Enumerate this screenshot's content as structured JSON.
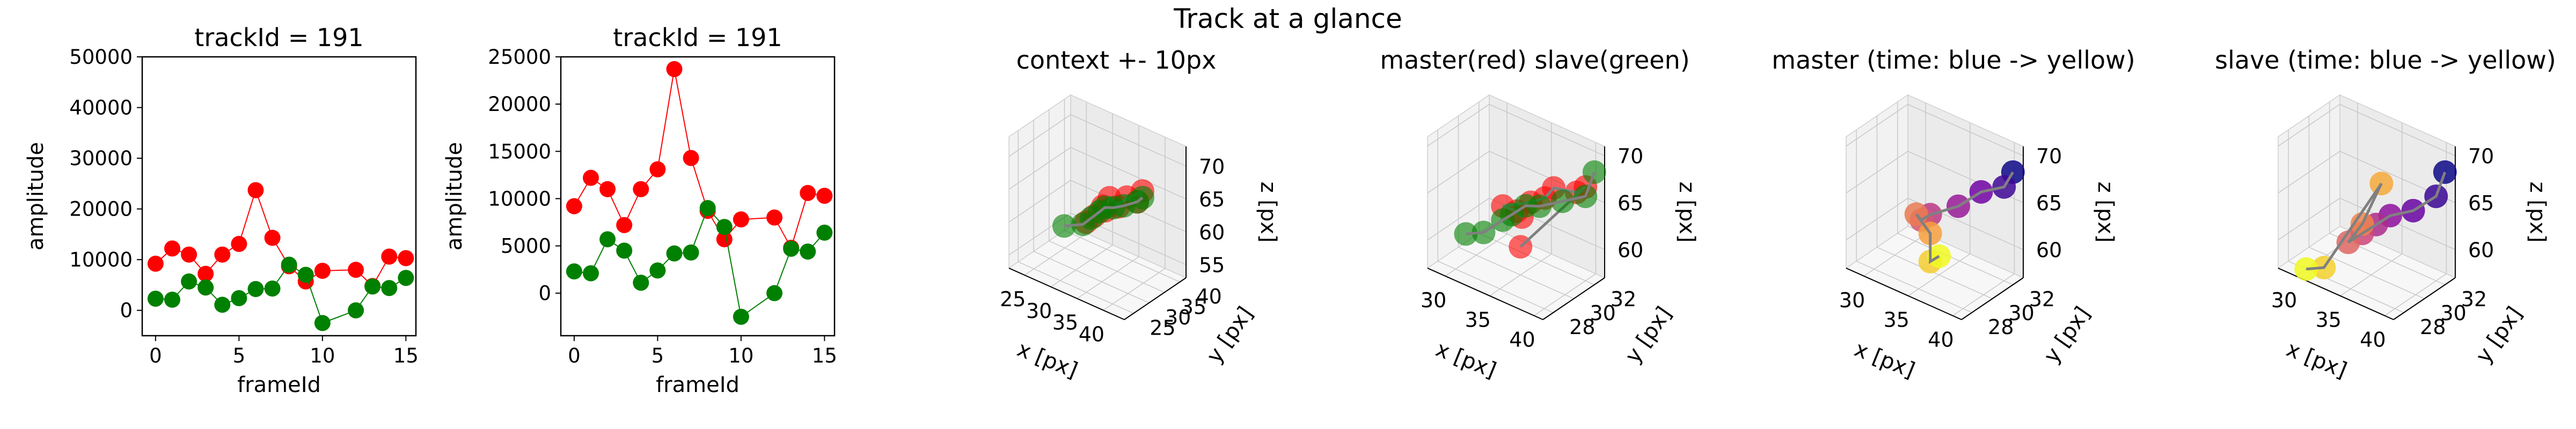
{
  "figure": {
    "suptitle": "Track at a glance"
  },
  "colors": {
    "master": "#ff0000",
    "slave": "#008000",
    "time_cmap": [
      "#0d0887",
      "#7e03a8",
      "#cc4778",
      "#f89540",
      "#f0f921"
    ]
  },
  "chart_data": [
    {
      "type": "scatter",
      "mode": "lines+markers",
      "title": "trackId = 191",
      "xlabel": "frameId",
      "ylabel": "amplitude",
      "xlim": [
        -0.8,
        15.6
      ],
      "ylim": [
        -5000,
        50000
      ],
      "xticks": [
        0,
        5,
        10,
        15
      ],
      "yticks": [
        0,
        10000,
        20000,
        30000,
        40000,
        50000
      ],
      "series": [
        {
          "color": "#ff0000",
          "x": [
            0,
            1,
            2,
            3,
            4,
            5,
            6,
            7,
            8,
            9,
            10,
            12,
            13,
            14,
            15
          ],
          "y": [
            9200,
            12200,
            11000,
            7200,
            11000,
            13100,
            23700,
            14300,
            8700,
            5700,
            7800,
            8000,
            4800,
            10600,
            10300
          ]
        },
        {
          "color": "#008000",
          "x": [
            0,
            1,
            2,
            3,
            4,
            5,
            6,
            7,
            8,
            9,
            10,
            12,
            13,
            14,
            15
          ],
          "y": [
            2300,
            2100,
            5700,
            4500,
            1100,
            2400,
            4200,
            4300,
            9000,
            7000,
            -2500,
            0,
            4700,
            4400,
            6400
          ]
        }
      ]
    },
    {
      "type": "scatter",
      "mode": "lines+markers",
      "title": "trackId = 191",
      "xlabel": "frameId",
      "ylabel": "amplitude",
      "xlim": [
        -0.8,
        15.6
      ],
      "ylim": [
        -4500,
        25000
      ],
      "xticks": [
        0,
        5,
        10,
        15
      ],
      "yticks": [
        0,
        5000,
        10000,
        15000,
        20000,
        25000
      ],
      "series": [
        {
          "color": "#ff0000",
          "x": [
            0,
            1,
            2,
            3,
            4,
            5,
            6,
            7,
            8,
            9,
            10,
            12,
            13,
            14,
            15
          ],
          "y": [
            9200,
            12200,
            11000,
            7200,
            11000,
            13100,
            23700,
            14300,
            8700,
            5700,
            7800,
            8000,
            4800,
            10600,
            10300
          ]
        },
        {
          "color": "#008000",
          "x": [
            0,
            1,
            2,
            3,
            4,
            5,
            6,
            7,
            8,
            9,
            10,
            12,
            13,
            14,
            15
          ],
          "y": [
            2300,
            2100,
            5700,
            4500,
            1100,
            2400,
            4200,
            4300,
            9000,
            7000,
            -2500,
            0,
            4700,
            4400,
            6400
          ]
        }
      ]
    },
    {
      "type": "scatter3d",
      "title": "context +- 10px",
      "xlabel": "x [px]",
      "ylabel": "y [px]",
      "zlabel": "z [px]",
      "xlim": [
        22,
        44
      ],
      "ylim": [
        22,
        42
      ],
      "zlim": [
        53,
        73
      ],
      "xticks": [
        25,
        30,
        35,
        40
      ],
      "yticks": [
        25,
        30,
        35,
        40
      ],
      "zticks": [
        55,
        60,
        65,
        70
      ],
      "coloring": "master-slave",
      "master": [
        [
          34,
          32,
          63.5
        ],
        [
          34.5,
          32,
          63
        ],
        [
          35,
          32.5,
          65
        ],
        [
          37,
          32,
          64.5
        ],
        [
          38,
          33,
          66
        ],
        [
          40,
          33,
          66
        ],
        [
          41,
          33,
          68
        ],
        [
          33,
          31,
          62
        ],
        [
          32,
          30,
          61
        ]
      ],
      "slave": [
        [
          29,
          28,
          60
        ],
        [
          32,
          29,
          61
        ],
        [
          33,
          30,
          62
        ],
        [
          34,
          31,
          63
        ],
        [
          35,
          31,
          64
        ],
        [
          36,
          32,
          64
        ],
        [
          38,
          32,
          65
        ],
        [
          40,
          33,
          66
        ],
        [
          41,
          33,
          67
        ]
      ]
    },
    {
      "type": "scatter3d",
      "title": "master(red) slave(green)",
      "xlabel": "x [px]",
      "ylabel": "y [px]",
      "zlabel": "z [px]",
      "xlim": [
        28,
        41
      ],
      "ylim": [
        27,
        33
      ],
      "zlim": [
        57,
        71
      ],
      "xticks": [
        30,
        35,
        40
      ],
      "yticks": [
        28,
        30,
        32
      ],
      "zticks": [
        60,
        65,
        70
      ],
      "coloring": "master-slave",
      "master": [
        [
          34,
          31,
          62
        ],
        [
          34,
          30.5,
          63
        ],
        [
          33,
          30,
          63.5
        ],
        [
          35,
          31,
          64
        ],
        [
          36,
          31.5,
          64.5
        ],
        [
          37,
          31.5,
          66
        ],
        [
          39,
          32,
          66
        ],
        [
          40,
          32,
          67
        ],
        [
          35,
          30,
          60
        ]
      ],
      "slave": [
        [
          30,
          29,
          60
        ],
        [
          32,
          29,
          61
        ],
        [
          33,
          30,
          62
        ],
        [
          34,
          30,
          63
        ],
        [
          35,
          30.5,
          64
        ],
        [
          36,
          31,
          64
        ],
        [
          38,
          31.5,
          65
        ],
        [
          40,
          32,
          66
        ],
        [
          41,
          32,
          69
        ]
      ]
    },
    {
      "type": "scatter3d",
      "title": "master (time: blue -> yellow)",
      "xlabel": "x [px]",
      "ylabel": "y [px]",
      "zlabel": "z [px]",
      "xlim": [
        28,
        41
      ],
      "ylim": [
        27,
        33
      ],
      "zlim": [
        57,
        71
      ],
      "xticks": [
        30,
        35,
        40
      ],
      "yticks": [
        28,
        30,
        32
      ],
      "zticks": [
        60,
        65,
        70
      ],
      "coloring": "time",
      "points": [
        [
          41,
          32,
          69
        ],
        [
          40,
          32,
          67
        ],
        [
          38,
          31.5,
          66
        ],
        [
          36,
          31,
          64
        ],
        [
          34,
          30,
          63
        ],
        [
          33,
          30,
          62
        ],
        [
          33,
          29.5,
          63
        ],
        [
          34,
          30,
          61
        ],
        [
          34,
          30,
          58
        ],
        [
          35,
          30,
          59
        ]
      ]
    },
    {
      "type": "scatter3d",
      "title": "slave (time: blue -> yellow)",
      "xlabel": "x [px]",
      "ylabel": "y [px]",
      "zlabel": "z [px]",
      "xlim": [
        28,
        41
      ],
      "ylim": [
        27,
        33
      ],
      "zlim": [
        57,
        71
      ],
      "xticks": [
        30,
        35,
        40
      ],
      "yticks": [
        28,
        30,
        32
      ],
      "zticks": [
        60,
        65,
        70
      ],
      "coloring": "time",
      "points": [
        [
          41,
          32,
          69
        ],
        [
          40,
          32,
          66
        ],
        [
          38,
          31.5,
          64
        ],
        [
          36,
          31,
          63
        ],
        [
          35,
          30.5,
          62
        ],
        [
          34,
          30,
          61
        ],
        [
          33,
          29.5,
          60
        ],
        [
          34,
          30,
          62
        ],
        [
          35,
          31,
          66
        ],
        [
          32,
          28,
          58
        ],
        [
          30,
          28,
          57
        ]
      ]
    }
  ]
}
